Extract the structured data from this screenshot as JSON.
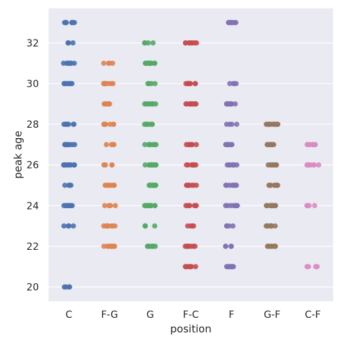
{
  "chart_data": {
    "type": "scatter",
    "subtype": "strip",
    "title": "",
    "xlabel": "position",
    "ylabel": "peak age",
    "ylim": [
      19.3,
      33.7
    ],
    "yticks": [
      20,
      22,
      24,
      26,
      28,
      30,
      32
    ],
    "grid": true,
    "legend": "none",
    "background_color": "#eaeaf2",
    "categories": [
      "C",
      "F-G",
      "G",
      "F-C",
      "F",
      "G-F",
      "C-F"
    ],
    "colors": [
      "#4c72b0",
      "#dd8452",
      "#55a868",
      "#c44e52",
      "#8172b3",
      "#937860",
      "#da8bc3"
    ],
    "series": [
      {
        "category": "C",
        "values": [
          20,
          23,
          24,
          24,
          25,
          26,
          26,
          26,
          27,
          27,
          28,
          28,
          30,
          30,
          31,
          31,
          32,
          33,
          33
        ]
      },
      {
        "category": "F-G",
        "values": [
          22,
          22,
          23,
          23,
          24,
          25,
          25,
          26,
          27,
          28,
          28,
          29,
          29,
          30,
          30,
          31
        ]
      },
      {
        "category": "G",
        "values": [
          22,
          22,
          23,
          24,
          24,
          24,
          25,
          25,
          25,
          26,
          26,
          26,
          27,
          27,
          28,
          28,
          29,
          29,
          30,
          31,
          31,
          31,
          32
        ]
      },
      {
        "category": "F-C",
        "values": [
          21,
          21,
          22,
          22,
          23,
          24,
          24,
          25,
          25,
          26,
          26,
          27,
          27,
          29,
          29,
          29,
          30,
          30,
          32,
          32
        ]
      },
      {
        "category": "F",
        "values": [
          21,
          21,
          21,
          22,
          23,
          24,
          24,
          25,
          25,
          26,
          26,
          27,
          27,
          28,
          29,
          29,
          29,
          30,
          33,
          33
        ]
      },
      {
        "category": "G-F",
        "values": [
          22,
          22,
          23,
          23,
          24,
          24,
          24,
          25,
          25,
          26,
          26,
          27,
          27,
          28,
          28,
          28
        ]
      },
      {
        "category": "C-F",
        "values": [
          21,
          24,
          26,
          26,
          27,
          27
        ]
      }
    ]
  }
}
